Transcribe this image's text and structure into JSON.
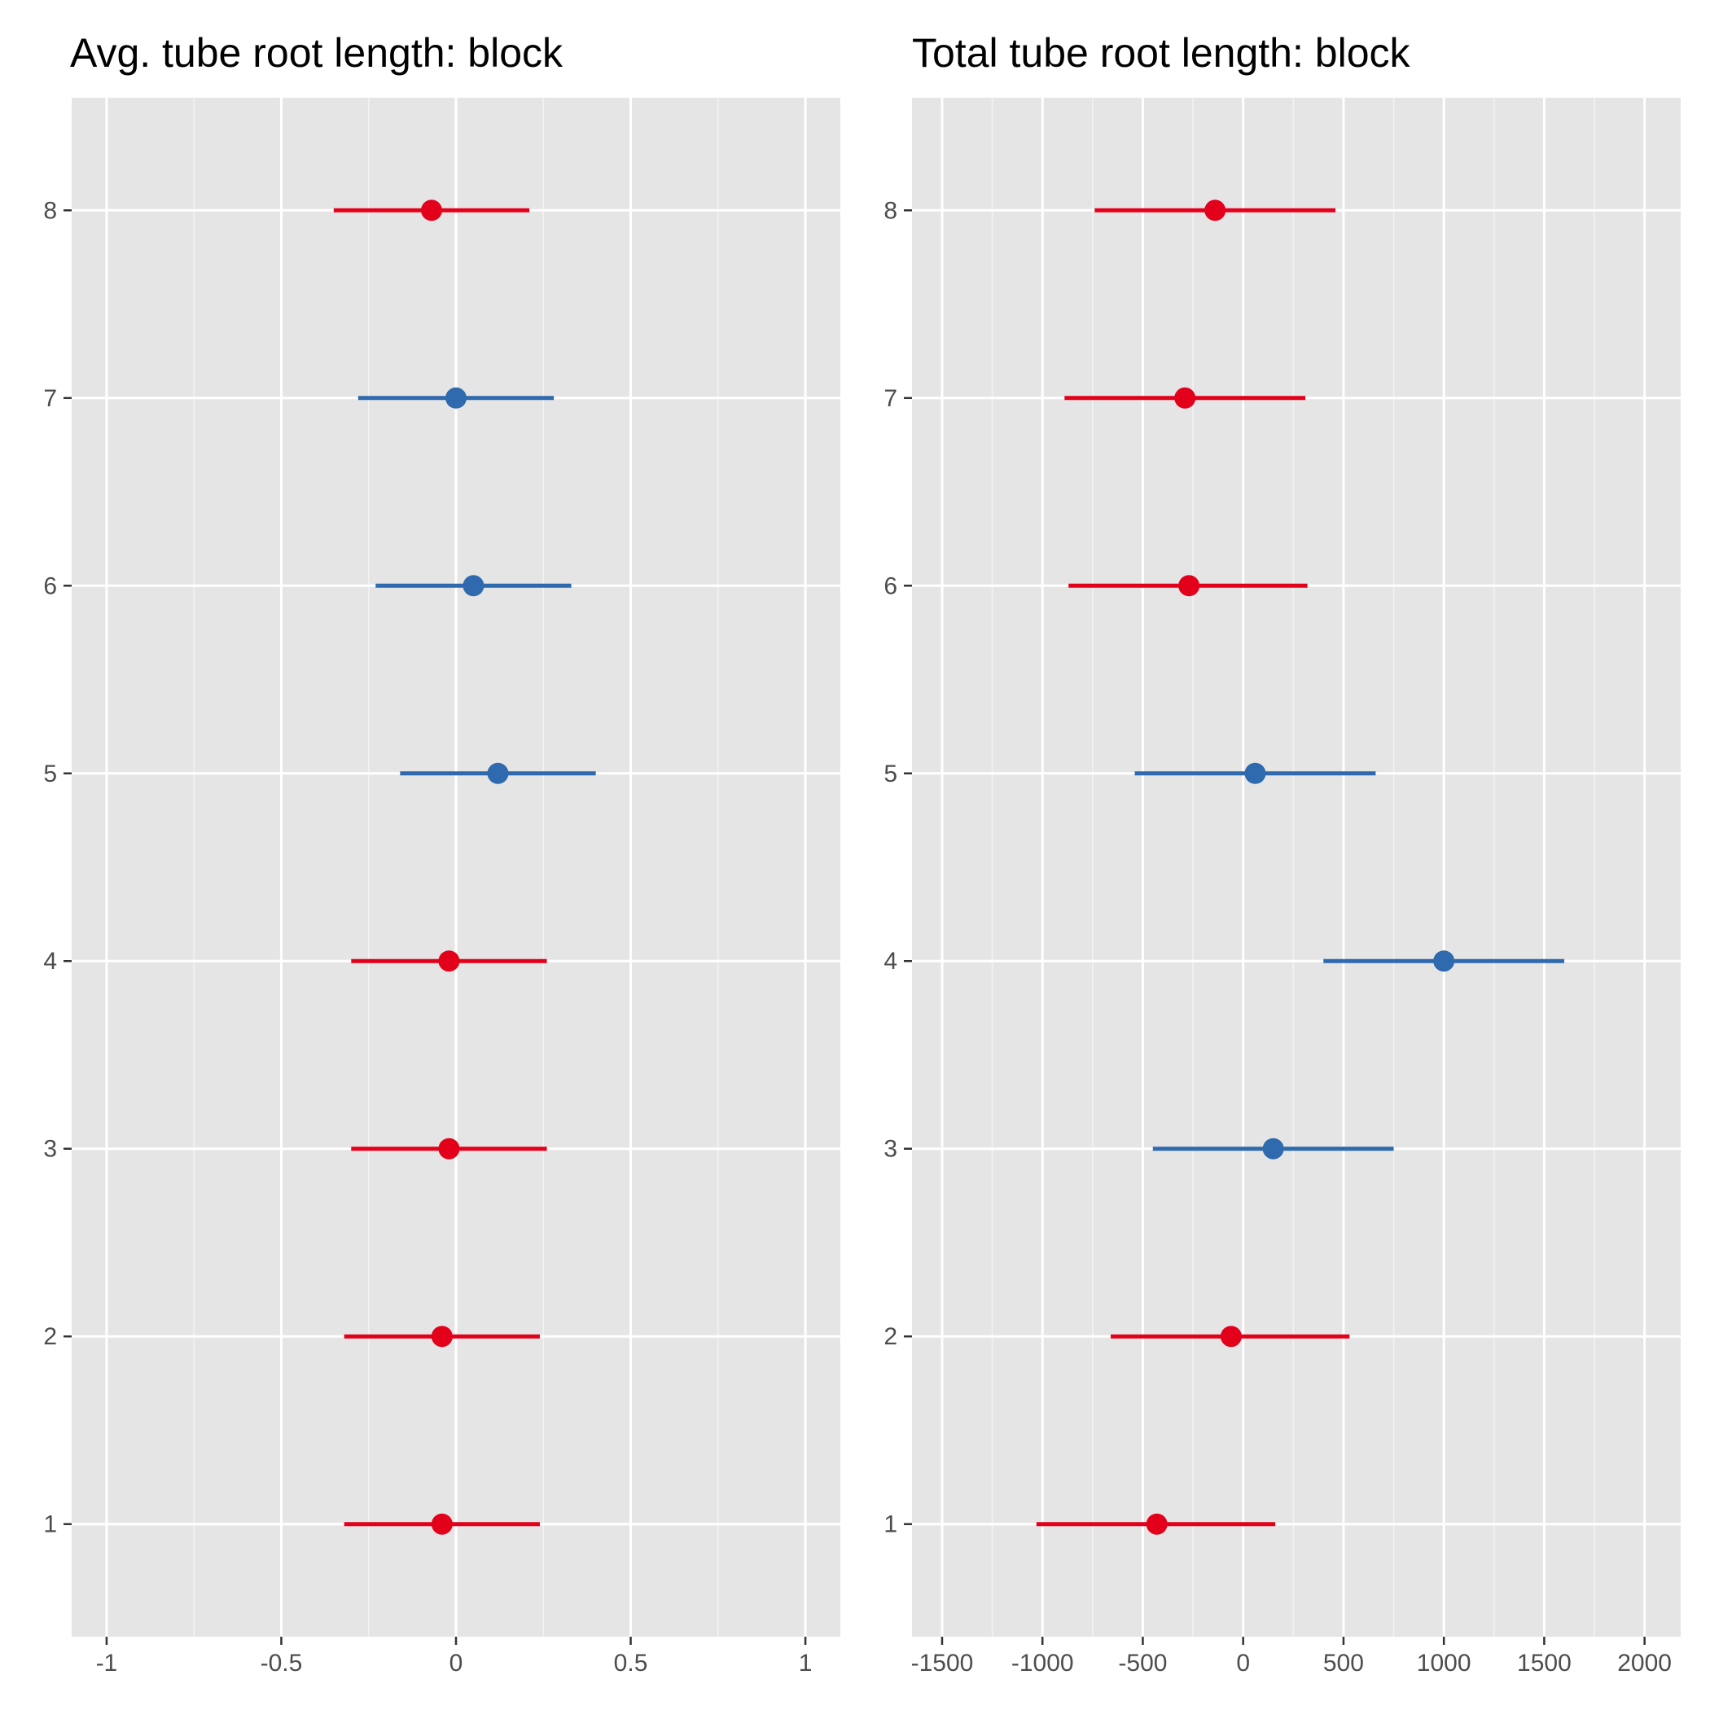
{
  "chart_data": [
    {
      "type": "scatter",
      "title": "Avg. tube root length: block",
      "xlabel": "",
      "ylabel": "",
      "xlim": [
        -1.1,
        1.1
      ],
      "ylim": [
        0.4,
        8.6
      ],
      "x_ticks": [
        -1,
        -0.5,
        0,
        0.5,
        1
      ],
      "x_tick_labels": [
        "-1",
        "-0.5",
        "0",
        "0.5",
        "1"
      ],
      "y_ticks": [
        1,
        2,
        3,
        4,
        5,
        6,
        7,
        8
      ],
      "y_tick_labels": [
        "1",
        "2",
        "3",
        "4",
        "5",
        "6",
        "7",
        "8"
      ],
      "grid": true,
      "points": [
        {
          "y": 1,
          "x": -0.04,
          "lo": -0.32,
          "hi": 0.24,
          "color": "#e3001b"
        },
        {
          "y": 2,
          "x": -0.04,
          "lo": -0.32,
          "hi": 0.24,
          "color": "#e3001b"
        },
        {
          "y": 3,
          "x": -0.02,
          "lo": -0.3,
          "hi": 0.26,
          "color": "#e3001b"
        },
        {
          "y": 4,
          "x": -0.02,
          "lo": -0.3,
          "hi": 0.26,
          "color": "#e3001b"
        },
        {
          "y": 5,
          "x": 0.12,
          "lo": -0.16,
          "hi": 0.4,
          "color": "#2e6aad"
        },
        {
          "y": 6,
          "x": 0.05,
          "lo": -0.23,
          "hi": 0.33,
          "color": "#2e6aad"
        },
        {
          "y": 7,
          "x": 0.0,
          "lo": -0.28,
          "hi": 0.28,
          "color": "#2e6aad"
        },
        {
          "y": 8,
          "x": -0.07,
          "lo": -0.35,
          "hi": 0.21,
          "color": "#e3001b"
        }
      ]
    },
    {
      "type": "scatter",
      "title": "Total tube root length: block",
      "xlabel": "",
      "ylabel": "",
      "xlim": [
        -1650,
        2180
      ],
      "ylim": [
        0.4,
        8.6
      ],
      "x_ticks": [
        -1500,
        -1000,
        -500,
        0,
        500,
        1000,
        1500,
        2000
      ],
      "x_tick_labels": [
        "-1500",
        "-1000",
        "-500",
        "0",
        "500",
        "1000",
        "1500",
        "2000"
      ],
      "y_ticks": [
        1,
        2,
        3,
        4,
        5,
        6,
        7,
        8
      ],
      "y_tick_labels": [
        "1",
        "2",
        "3",
        "4",
        "5",
        "6",
        "7",
        "8"
      ],
      "grid": true,
      "points": [
        {
          "y": 1,
          "x": -430,
          "lo": -1030,
          "hi": 160,
          "color": "#e3001b"
        },
        {
          "y": 2,
          "x": -60,
          "lo": -660,
          "hi": 530,
          "color": "#e3001b"
        },
        {
          "y": 3,
          "x": 150,
          "lo": -450,
          "hi": 750,
          "color": "#2e6aad"
        },
        {
          "y": 4,
          "x": 1000,
          "lo": 400,
          "hi": 1600,
          "color": "#2e6aad"
        },
        {
          "y": 5,
          "x": 60,
          "lo": -540,
          "hi": 660,
          "color": "#2e6aad"
        },
        {
          "y": 6,
          "x": -270,
          "lo": -870,
          "hi": 320,
          "color": "#e3001b"
        },
        {
          "y": 7,
          "x": -290,
          "lo": -890,
          "hi": 310,
          "color": "#e3001b"
        },
        {
          "y": 8,
          "x": -140,
          "lo": -740,
          "hi": 460,
          "color": "#e3001b"
        }
      ]
    }
  ]
}
